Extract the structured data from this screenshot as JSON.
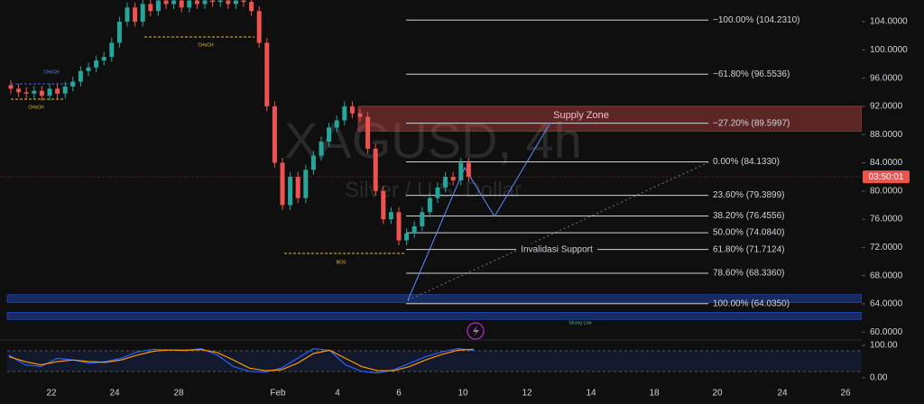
{
  "chart_data": {
    "type": "candlestick",
    "title": "XAGUSD, 4h",
    "subtitle": "Silver / U.S. Dollar",
    "x_labels": [
      "22",
      "24",
      "28",
      "Feb",
      "4",
      "6",
      "10",
      "12",
      "14",
      "18",
      "20",
      "24",
      "26"
    ],
    "open": [
      95,
      94.5,
      94,
      93.8,
      94.2,
      93.5,
      94.5,
      93.8,
      94.8,
      95.5,
      97,
      97.5,
      98.5,
      99,
      101,
      104,
      106,
      104,
      106.5,
      105.5,
      107,
      106.5,
      107,
      106,
      107,
      106.5,
      107,
      106.8,
      107,
      106.5,
      107,
      106.8,
      105.5,
      101,
      92,
      84,
      78,
      82,
      79,
      83,
      85,
      87,
      89,
      90,
      92,
      91,
      90.5,
      86,
      80,
      76,
      77,
      73,
      74,
      75,
      77,
      79,
      80.5,
      82,
      81.5,
      84
    ],
    "high": [
      95.7,
      95.2,
      94.7,
      94.9,
      94.9,
      95.2,
      95.2,
      95.5,
      96.2,
      97.7,
      98.2,
      99.2,
      99.7,
      101.7,
      104.7,
      106.7,
      106.7,
      107.2,
      107.2,
      107.7,
      107.7,
      107.7,
      107.7,
      107.7,
      107.7,
      107.7,
      107.7,
      107.7,
      107.7,
      107.7,
      107.7,
      107.5,
      106.2,
      101.7,
      92.7,
      84.7,
      82.7,
      82.7,
      83.7,
      85.7,
      87.7,
      89.7,
      90.7,
      92.7,
      92.7,
      91.7,
      91.2,
      86.7,
      80.7,
      77.7,
      77.7,
      74.7,
      75.7,
      77.7,
      79.7,
      81.2,
      82.7,
      82.7,
      84.7,
      84.7
    ],
    "low": [
      93.8,
      93.3,
      93.1,
      93.1,
      92.8,
      92.8,
      93.1,
      93.1,
      94.1,
      94.8,
      96.3,
      96.8,
      97.8,
      98.3,
      100.3,
      103.3,
      103.3,
      103.3,
      104.8,
      104.8,
      105.8,
      105.8,
      105.3,
      105.3,
      105.8,
      105.8,
      106.1,
      106.1,
      105.8,
      105.8,
      106.1,
      104.8,
      100.3,
      91.3,
      83.3,
      77.3,
      77.3,
      78.3,
      78.3,
      82.3,
      84.3,
      86.3,
      88.3,
      89.3,
      90.3,
      89.8,
      85.3,
      79.3,
      75.3,
      75.3,
      72.3,
      72.3,
      73.3,
      74.3,
      76.3,
      78.3,
      79.8,
      80.8,
      80.8,
      81.3
    ],
    "close": [
      94.5,
      94,
      93.8,
      94.2,
      93.5,
      94.5,
      93.8,
      94.8,
      95.5,
      97,
      97.5,
      98.5,
      99,
      101,
      104,
      106,
      104,
      106.5,
      105.5,
      107,
      106.5,
      107,
      106,
      107,
      106.5,
      107,
      106.8,
      107,
      106.5,
      107,
      106.8,
      105.5,
      101,
      92,
      84,
      78,
      82,
      79,
      83,
      85,
      87,
      89,
      90,
      92,
      91,
      90.5,
      86,
      80,
      76,
      77,
      73,
      74,
      75,
      77,
      79,
      80.5,
      82,
      81.5,
      84,
      82
    ],
    "up_color": "#26a69a",
    "down_color": "#ef5350",
    "ylim": [
      59.14,
      107.07
    ],
    "yticks": [
      {
        "value": 60,
        "label": "60.0000"
      },
      {
        "value": 64,
        "label": "64.0000"
      },
      {
        "value": 68,
        "label": "68.0000"
      },
      {
        "value": 72,
        "label": "72.0000"
      },
      {
        "value": 76,
        "label": "76.0000"
      },
      {
        "value": 80,
        "label": "80.0000"
      },
      {
        "value": 84,
        "label": "84.0000"
      },
      {
        "value": 88,
        "label": "88.0000"
      },
      {
        "value": 92,
        "label": "92.0000"
      },
      {
        "value": 96,
        "label": "96.0000"
      },
      {
        "value": 100,
        "label": "100.0000"
      },
      {
        "value": 104,
        "label": "104.0000"
      }
    ],
    "countdown": "03:50:01",
    "fib_levels": [
      {
        "label": "−100.00% (104.2310)",
        "price": 104.231
      },
      {
        "label": "−61.80% (96.5536)",
        "price": 96.5536
      },
      {
        "label": "−27.20% (89.5997)",
        "price": 89.5997
      },
      {
        "label": "0.00% (84.1330)",
        "price": 84.133
      },
      {
        "label": "23.60% (79.3899)",
        "price": 79.3899
      },
      {
        "label": "38.20% (76.4556)",
        "price": 76.4556
      },
      {
        "label": "50.00% (74.0840)",
        "price": 74.084
      },
      {
        "label": "61.80% (71.7124)",
        "price": 71.7124
      },
      {
        "label": "78.60% (68.3360)",
        "price": 68.336
      },
      {
        "label": "100.00% (64.0350)",
        "price": 64.035
      }
    ],
    "supply_zone": {
      "label": "Supply Zone",
      "top": 92,
      "bottom": 88.5
    },
    "low_zones": [
      {
        "top": 65.3,
        "bottom": 64.2
      },
      {
        "top": 62.8,
        "bottom": 61.8,
        "label": "Strong Low"
      }
    ],
    "annotations": {
      "choch_1": "CHoCH",
      "choch_2": "CHoCH",
      "choch_3": "CHoCH",
      "bos": "BOS",
      "invalidation": "Invalidasi Support"
    },
    "oscillator": {
      "ylim": [
        0,
        100
      ],
      "yticks": [
        {
          "value": 100,
          "label": "100.00"
        },
        {
          "value": 0,
          "label": "0.00"
        }
      ],
      "k": [
        70,
        40,
        35,
        60,
        55,
        45,
        50,
        60,
        80,
        88,
        86,
        84,
        90,
        70,
        35,
        20,
        18,
        30,
        60,
        90,
        85,
        40,
        20,
        15,
        25,
        45,
        65,
        80,
        90,
        85
      ],
      "d": [
        65,
        50,
        40,
        50,
        55,
        50,
        48,
        55,
        70,
        82,
        86,
        85,
        87,
        78,
        55,
        30,
        22,
        25,
        45,
        75,
        85,
        60,
        35,
        22,
        22,
        35,
        55,
        72,
        85,
        88
      ],
      "k_color": "#2962ff",
      "d_color": "#ff9800"
    }
  }
}
